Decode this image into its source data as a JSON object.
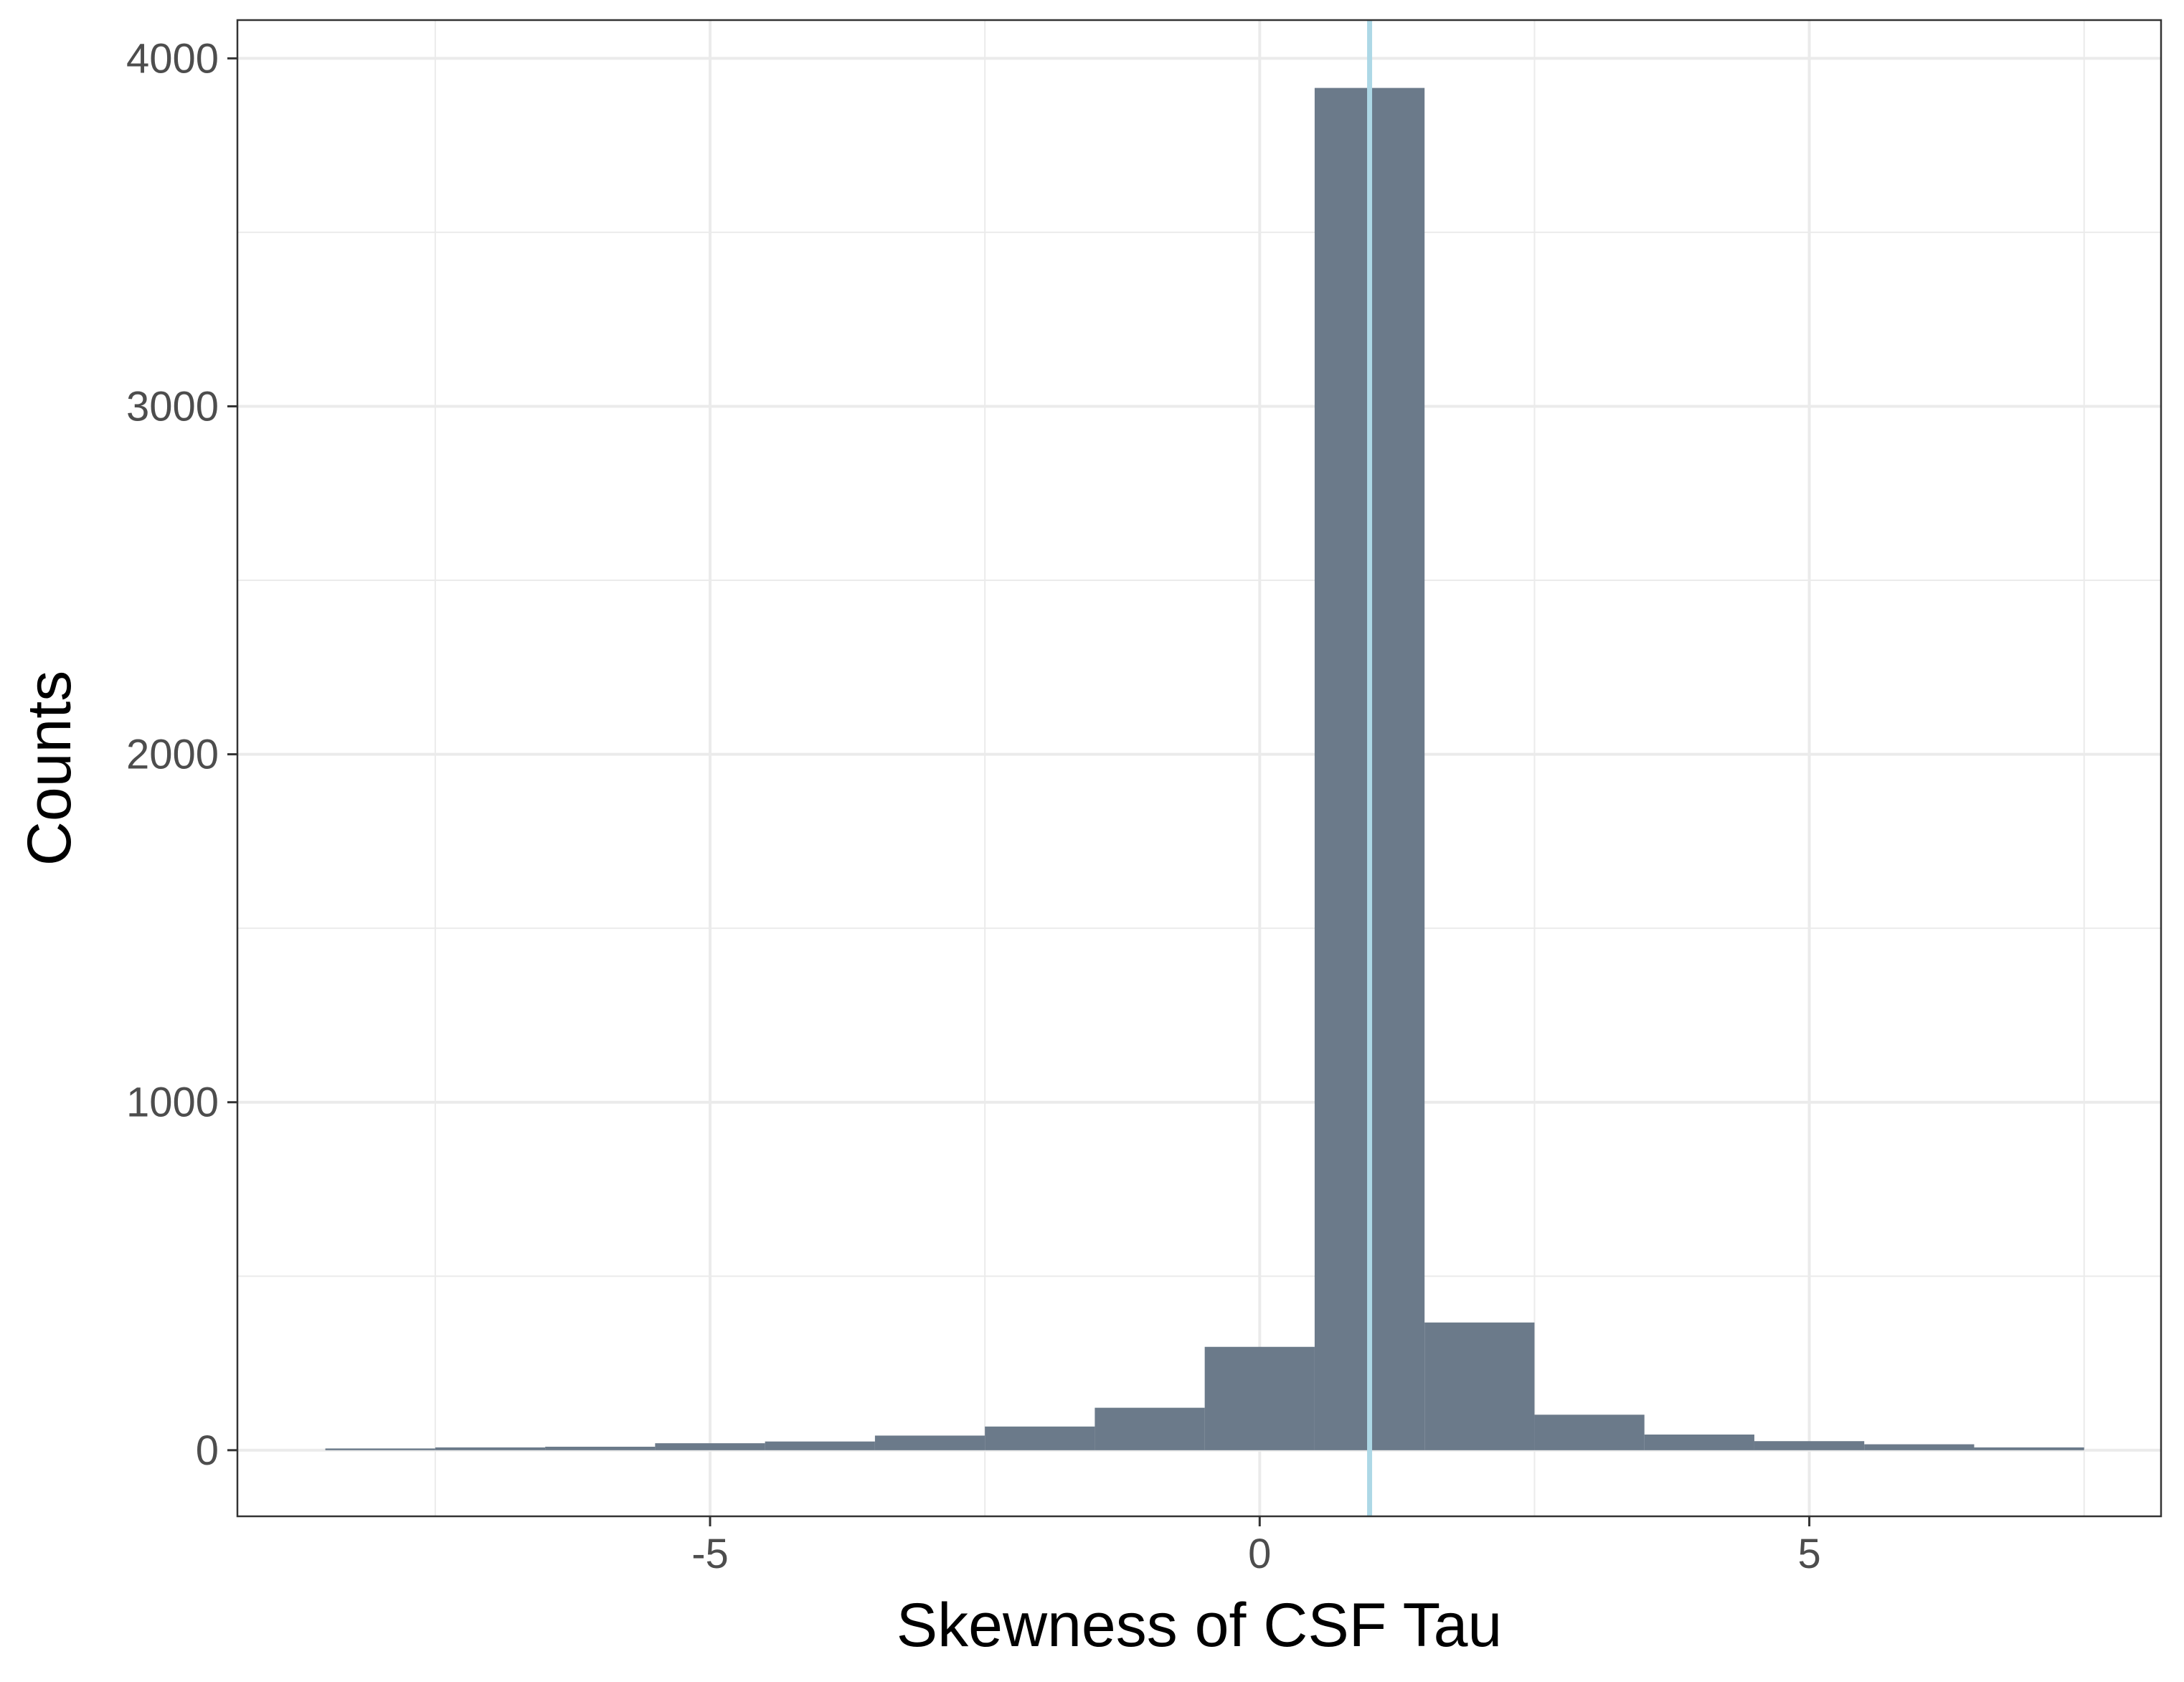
{
  "chart_data": {
    "type": "bar",
    "xlabel": "Skewness of CSF Tau",
    "ylabel": "Counts",
    "xlim": [
      -9.3,
      8.2
    ],
    "ylim": [
      -190,
      4110
    ],
    "x_ticks": [
      -5,
      0,
      5
    ],
    "x_tick_labels": [
      "-5",
      "0",
      "5"
    ],
    "y_ticks": [
      0,
      1000,
      2000,
      3000,
      4000
    ],
    "y_tick_labels": [
      "0",
      "1000",
      "2000",
      "3000",
      "4000"
    ],
    "bins": [
      {
        "x0": -8.5,
        "x1": -7.5,
        "count": 5
      },
      {
        "x0": -7.5,
        "x1": -6.5,
        "count": 8
      },
      {
        "x0": -6.5,
        "x1": -5.5,
        "count": 10
      },
      {
        "x0": -5.5,
        "x1": -4.5,
        "count": 20
      },
      {
        "x0": -4.5,
        "x1": -3.5,
        "count": 25
      },
      {
        "x0": -3.5,
        "x1": -2.5,
        "count": 42
      },
      {
        "x0": -2.5,
        "x1": -1.5,
        "count": 68
      },
      {
        "x0": -1.5,
        "x1": -0.5,
        "count": 122
      },
      {
        "x0": -0.5,
        "x1": 0.5,
        "count": 297
      },
      {
        "x0": 0.5,
        "x1": 1.5,
        "count": 3915
      },
      {
        "x0": 1.5,
        "x1": 2.5,
        "count": 367
      },
      {
        "x0": 2.5,
        "x1": 3.5,
        "count": 102
      },
      {
        "x0": 3.5,
        "x1": 4.5,
        "count": 45
      },
      {
        "x0": 4.5,
        "x1": 5.5,
        "count": 26
      },
      {
        "x0": 5.5,
        "x1": 6.5,
        "count": 17
      },
      {
        "x0": 6.5,
        "x1": 7.5,
        "count": 8
      }
    ],
    "reference_line_x": 1.0,
    "grid": true,
    "colors": {
      "bar": "#6b7a8a",
      "reference_line": "#add8e6",
      "grid": "#ebebeb",
      "panel_border": "#333333"
    }
  }
}
